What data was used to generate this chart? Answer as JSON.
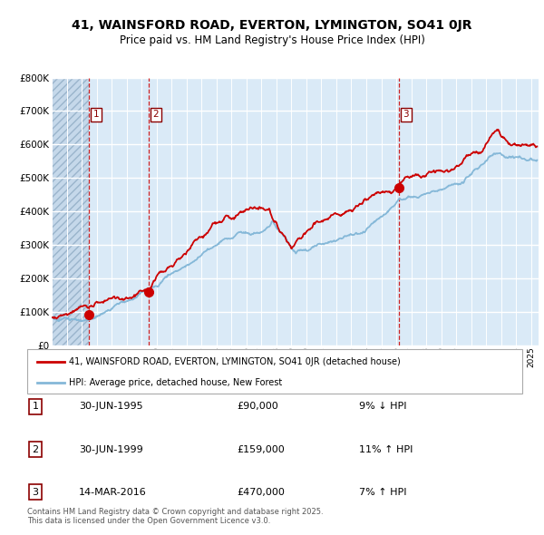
{
  "title_line1": "41, WAINSFORD ROAD, EVERTON, LYMINGTON, SO41 0JR",
  "title_line2": "Price paid vs. HM Land Registry's House Price Index (HPI)",
  "legend_line1": "41, WAINSFORD ROAD, EVERTON, LYMINGTON, SO41 0JR (detached house)",
  "legend_line2": "HPI: Average price, detached house, New Forest",
  "sale_color": "#cc0000",
  "hpi_color": "#85b8d8",
  "vline_color": "#cc0000",
  "bg_color": "#daeaf7",
  "hatch_color": "#c5d8ea",
  "grid_color": "#ffffff",
  "sales": [
    {
      "x": 1995.5,
      "price": 90000,
      "label": "1"
    },
    {
      "x": 1999.5,
      "price": 159000,
      "label": "2"
    },
    {
      "x": 2016.2,
      "price": 470000,
      "label": "3"
    }
  ],
  "sale_labels": [
    {
      "num": "1",
      "date": "30-JUN-1995",
      "price": "£90,000",
      "note": "9% ↓ HPI"
    },
    {
      "num": "2",
      "date": "30-JUN-1999",
      "price": "£159,000",
      "note": "11% ↑ HPI"
    },
    {
      "num": "3",
      "date": "14-MAR-2016",
      "price": "£470,000",
      "note": "7% ↑ HPI"
    }
  ],
  "footer": "Contains HM Land Registry data © Crown copyright and database right 2025.\nThis data is licensed under the Open Government Licence v3.0.",
  "ylim": [
    0,
    800000
  ],
  "yticks": [
    0,
    100000,
    200000,
    300000,
    400000,
    500000,
    600000,
    700000,
    800000
  ],
  "ytick_labels": [
    "£0",
    "£100K",
    "£200K",
    "£300K",
    "£400K",
    "£500K",
    "£600K",
    "£700K",
    "£800K"
  ],
  "xmin": 1993.0,
  "xmax": 2025.5
}
